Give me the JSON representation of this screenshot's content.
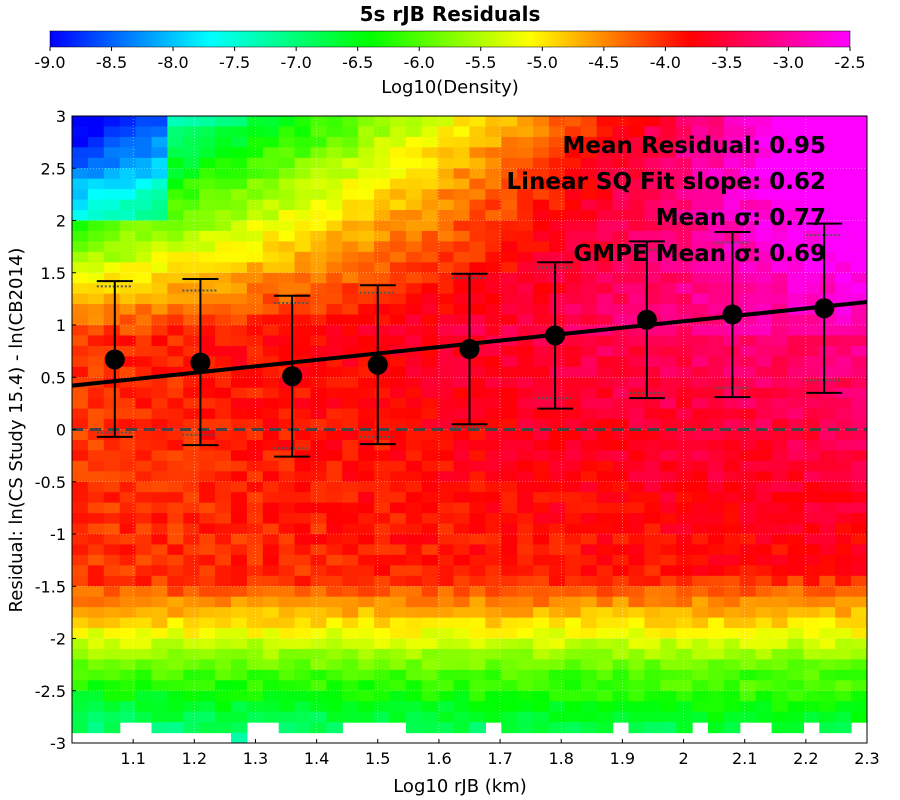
{
  "chart_data": {
    "type": "heatmap",
    "title": "5s rJB Residuals",
    "xlabel": "Log10 rJB (km)",
    "ylabel": "Residual: ln(CS Study 15.4) - ln(CB2014)",
    "xlim": [
      1.0,
      2.3
    ],
    "ylim": [
      -3,
      3
    ],
    "x_ticks": [
      "1.1",
      "1.2",
      "1.3",
      "1.4",
      "1.5",
      "1.6",
      "1.7",
      "1.8",
      "1.9",
      "2",
      "2.1",
      "2.2",
      "2.3"
    ],
    "y_ticks": [
      "3",
      "2.5",
      "2",
      "1.5",
      "1",
      "0.5",
      "0",
      "-0.5",
      "-1",
      "-1.5",
      "-2",
      "-2.5",
      "-3"
    ],
    "grid": true,
    "colorbar": {
      "label": "Log10(Density)",
      "range": [
        -9.0,
        -2.5
      ],
      "ticks": [
        "-9.0",
        "-8.5",
        "-8.0",
        "-7.5",
        "-7.0",
        "-6.5",
        "-6.0",
        "-5.5",
        "-5.0",
        "-4.5",
        "-4.0",
        "-3.5",
        "-3.0",
        "-2.5"
      ],
      "colormap": [
        "#0000ff",
        "#00ffff",
        "#00ff00",
        "#ffff00",
        "#ff0000",
        "#ff00ff"
      ]
    },
    "annotations": [
      "Mean Residual: 0.95",
      "Linear SQ Fit slope: 0.62",
      "Mean σ: 0.77",
      "GMPE Mean σ: 0.69"
    ],
    "binned_means": {
      "x": [
        1.07,
        1.21,
        1.36,
        1.5,
        1.65,
        1.79,
        1.94,
        2.08,
        2.23
      ],
      "mean": [
        0.67,
        0.64,
        0.51,
        0.62,
        0.77,
        0.9,
        1.05,
        1.1,
        1.16
      ],
      "std_lower": [
        -0.07,
        -0.15,
        -0.26,
        -0.14,
        0.05,
        0.2,
        0.3,
        0.31,
        0.35
      ],
      "std_upper": [
        1.42,
        1.44,
        1.28,
        1.38,
        1.49,
        1.6,
        1.8,
        1.89,
        1.97
      ],
      "gmpe_lower": [
        -0.03,
        -0.05,
        -0.18,
        -0.07,
        0.02,
        0.3,
        0.35,
        0.4,
        0.47
      ],
      "gmpe_upper": [
        1.37,
        1.33,
        1.21,
        1.31,
        1.45,
        1.55,
        1.72,
        1.79,
        1.86
      ]
    },
    "fit_line": {
      "x": [
        1.0,
        2.3
      ],
      "y": [
        0.42,
        1.22
      ]
    },
    "reference_line_y": 0
  }
}
